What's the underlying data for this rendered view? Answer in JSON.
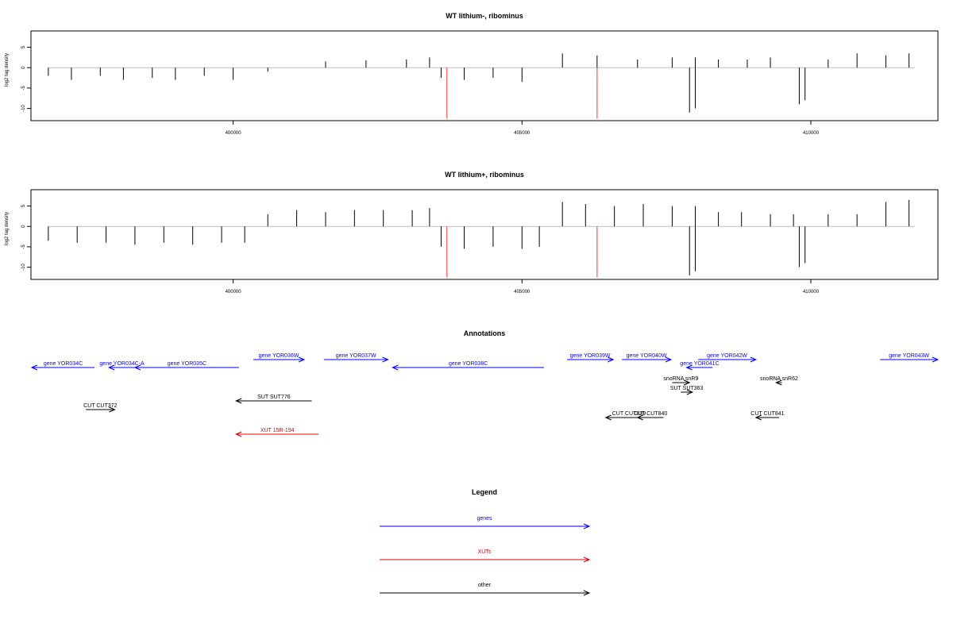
{
  "chart_data": [
    {
      "type": "bar",
      "title": "WT lithium-, ribominus",
      "ylabel": "log2 tag density",
      "xlim": [
        396500,
        412200
      ],
      "ylim": [
        -13,
        9
      ],
      "x_ticks": [
        400000,
        405000,
        410000
      ],
      "y_ticks": [
        5,
        0,
        -5,
        -10
      ],
      "series": [
        {
          "values": [
            [
              396800,
              -2
            ],
            [
              397200,
              -3
            ],
            [
              397700,
              -2
            ],
            [
              398100,
              -3
            ],
            [
              398600,
              -2.5
            ],
            [
              399000,
              -3
            ],
            [
              399500,
              -2
            ],
            [
              400000,
              -3
            ],
            [
              400600,
              -1
            ],
            [
              401600,
              1.5
            ],
            [
              402300,
              1.8
            ],
            [
              403000,
              2
            ],
            [
              403400,
              2.5
            ],
            [
              403600,
              -2.5
            ],
            [
              404000,
              -3
            ],
            [
              404500,
              -2.5
            ],
            [
              405000,
              -3.5
            ],
            [
              405700,
              3.5
            ],
            [
              406300,
              3
            ],
            [
              407000,
              2
            ],
            [
              407600,
              2.5
            ],
            [
              408000,
              2.5
            ],
            [
              408400,
              2
            ],
            [
              408900,
              2
            ],
            [
              409300,
              2.5
            ],
            [
              410300,
              2
            ],
            [
              410800,
              3.5
            ],
            [
              411300,
              3
            ],
            [
              411700,
              3.5
            ]
          ]
        },
        {
          "name": "",
          "values": [
            [
              403700,
              -12.5
            ],
            [
              406300,
              -12.5
            ]
          ]
        },
        {
          "values": [
            [
              407900,
              -11
            ],
            [
              408000,
              -10
            ],
            [
              409800,
              -9
            ],
            [
              409900,
              -8
            ]
          ]
        }
      ]
    },
    {
      "type": "bar",
      "title": "WT lithium+, ribominus",
      "ylabel": "log2 tag density",
      "xlim": [
        396500,
        412200
      ],
      "ylim": [
        -13,
        9
      ],
      "x_ticks": [
        400000,
        405000,
        410000
      ],
      "y_ticks": [
        5,
        0,
        -5,
        -10
      ],
      "series": [
        {
          "values": [
            [
              396800,
              -3.5
            ],
            [
              397300,
              -4
            ],
            [
              397800,
              -4
            ],
            [
              398300,
              -4.5
            ],
            [
              398800,
              -4
            ],
            [
              399300,
              -4.5
            ],
            [
              399800,
              -4
            ],
            [
              400200,
              -4
            ],
            [
              400600,
              3
            ],
            [
              401100,
              4
            ],
            [
              401600,
              3.5
            ],
            [
              402100,
              4
            ],
            [
              402600,
              4
            ],
            [
              403100,
              4
            ],
            [
              403400,
              4.5
            ],
            [
              403600,
              -5
            ],
            [
              404000,
              -5.5
            ],
            [
              404500,
              -5
            ],
            [
              405000,
              -5.5
            ],
            [
              405300,
              -5
            ],
            [
              405700,
              6
            ],
            [
              406100,
              5.5
            ],
            [
              406600,
              5
            ],
            [
              407100,
              5.5
            ],
            [
              407600,
              5
            ],
            [
              408000,
              5
            ],
            [
              408400,
              3.5
            ],
            [
              408800,
              3.5
            ],
            [
              409300,
              3
            ],
            [
              409700,
              3
            ],
            [
              410300,
              3
            ],
            [
              410800,
              3
            ],
            [
              411300,
              6
            ],
            [
              411700,
              6.5
            ]
          ]
        },
        {
          "values": [
            [
              403700,
              -12.5
            ],
            [
              406300,
              -12.5
            ]
          ]
        },
        {
          "values": [
            [
              407900,
              -12
            ],
            [
              408000,
              -11
            ],
            [
              409800,
              -10
            ],
            [
              409900,
              -9
            ]
          ]
        }
      ]
    }
  ],
  "colors": {
    "genes": "#0000ff",
    "xuts": "#dd0000",
    "other": "#000000",
    "peak": "#ff5555"
  },
  "annotations": {
    "title": "Annotations",
    "items": [
      {
        "label": "gene YOR034C",
        "start": 396000,
        "end": 397600,
        "dir": "left",
        "cls": "genes",
        "row": 0
      },
      {
        "label": "gene YOR034C-A",
        "start": 397850,
        "end": 398300,
        "dir": "left",
        "cls": "genes",
        "row": 0
      },
      {
        "label": "gene YOR035C",
        "start": 398300,
        "end": 400100,
        "dir": "left",
        "cls": "genes",
        "row": 0
      },
      {
        "label": "gene YOR036W",
        "start": 400350,
        "end": 401230,
        "dir": "right",
        "cls": "genes",
        "row": 1
      },
      {
        "label": "gene YOR037W",
        "start": 401570,
        "end": 402680,
        "dir": "right",
        "cls": "genes",
        "row": 1
      },
      {
        "label": "gene YOR038C",
        "start": 402760,
        "end": 405380,
        "dir": "left",
        "cls": "genes",
        "row": 0
      },
      {
        "label": "gene YOR039W",
        "start": 405780,
        "end": 406580,
        "dir": "right",
        "cls": "genes",
        "row": 1
      },
      {
        "label": "gene YOR040W",
        "start": 406730,
        "end": 407580,
        "dir": "right",
        "cls": "genes",
        "row": 1
      },
      {
        "label": "gene YOR041C",
        "start": 407850,
        "end": 408300,
        "dir": "left",
        "cls": "genes",
        "row": 0
      },
      {
        "label": "gene YOR042W",
        "start": 408050,
        "end": 409050,
        "dir": "right",
        "cls": "genes",
        "row": 1
      },
      {
        "label": "gene YOR043W",
        "start": 411200,
        "end": 412200,
        "dir": "right",
        "cls": "genes",
        "row": 1
      },
      {
        "label": "snoRNA snR9",
        "start": 407600,
        "end": 407900,
        "dir": "right",
        "cls": "other",
        "row": 2
      },
      {
        "label": "snoRNA snR62",
        "start": 409400,
        "end": 409500,
        "dir": "left",
        "cls": "other",
        "row": 2
      },
      {
        "label": "SUT SUT363",
        "start": 407750,
        "end": 407950,
        "dir": "right",
        "cls": "other",
        "row": 3
      },
      {
        "label": "SUT SUT776",
        "start": 400050,
        "end": 401360,
        "dir": "left",
        "cls": "other",
        "row": 4
      },
      {
        "label": "CUT CUT372",
        "start": 397450,
        "end": 397950,
        "dir": "right",
        "cls": "other",
        "row": 5
      },
      {
        "label": "CUT CUT839",
        "start": 406450,
        "end": 407250,
        "dir": "left",
        "cls": "other",
        "row": 6
      },
      {
        "label": "CUT CUT840",
        "start": 407000,
        "end": 407450,
        "dir": "left",
        "cls": "other",
        "row": 6
      },
      {
        "label": "CUT CUT841",
        "start": 409050,
        "end": 409450,
        "dir": "left",
        "cls": "other",
        "row": 6
      },
      {
        "label": "XUT 15R-194",
        "start": 400050,
        "end": 401480,
        "dir": "left",
        "cls": "xuts",
        "row": 7
      }
    ]
  },
  "legend": {
    "title": "Legend",
    "items": [
      {
        "label": "genes",
        "cls": "genes"
      },
      {
        "label": "XUTs",
        "cls": "xuts"
      },
      {
        "label": "other",
        "cls": "other"
      }
    ]
  }
}
